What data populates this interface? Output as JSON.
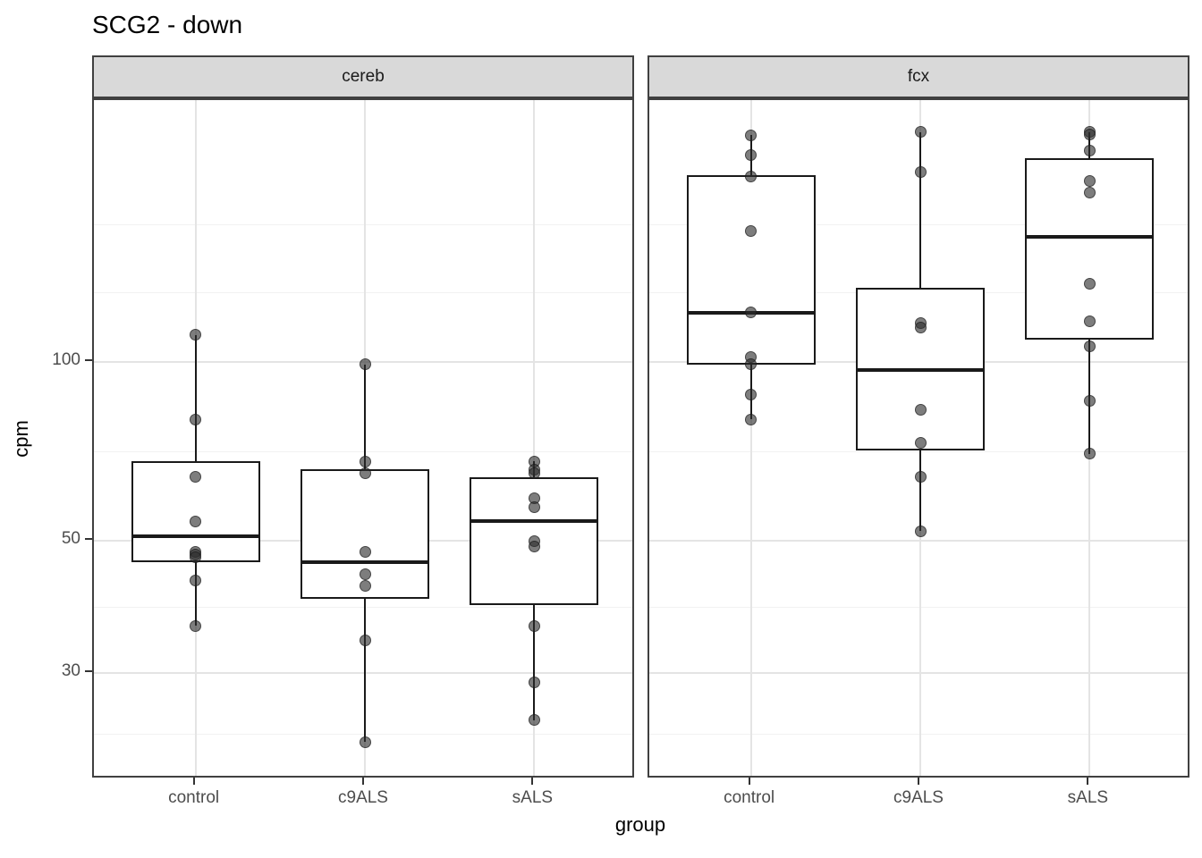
{
  "title": "SCG2 - down",
  "axes": {
    "x_title": "group",
    "y_title": "cpm",
    "y_tick_labels": [
      "100",
      "50",
      "30"
    ],
    "x_tick_labels": [
      "control",
      "c9ALS",
      "sALS"
    ]
  },
  "facet_labels": [
    "cereb",
    "fcx"
  ],
  "chart_data": {
    "type": "boxplot",
    "subtype": "faceted boxplot with overlaid points, log10 y scale",
    "title": "SCG2 - down",
    "xlabel": "group",
    "ylabel": "cpm",
    "y_scale": "log10",
    "ylim": [
      19.9,
      275
    ],
    "y_major_ticks": [
      100,
      50,
      30
    ],
    "y_minor_gridlines": [
      170,
      130.4,
      70.7,
      38.7,
      23.7
    ],
    "categories": [
      "control",
      "c9ALS",
      "sALS"
    ],
    "grid": "on",
    "legend": "none",
    "facets": [
      {
        "label": "cereb",
        "groups": [
          {
            "category": "control",
            "box": {
              "q1": 46,
              "median": 51,
              "q3": 68,
              "whisker_low": 36,
              "whisker_high": 111
            },
            "points": [
              111,
              80,
              64,
              54,
              48,
              47.5,
              47,
              43,
              36
            ]
          },
          {
            "category": "c9ALS",
            "box": {
              "q1": 40,
              "median": 46,
              "q3": 66,
              "whisker_low": 23,
              "whisker_high": 99
            },
            "points": [
              99,
              68,
              65,
              48,
              44,
              42,
              34,
              23
            ]
          },
          {
            "category": "sALS",
            "box": {
              "q1": 39,
              "median": 54,
              "q3": 64,
              "whisker_low": 25,
              "whisker_high": 68
            },
            "points": [
              68,
              66,
              65,
              59,
              57,
              50,
              49,
              36,
              29,
              25
            ]
          }
        ]
      },
      {
        "label": "fcx",
        "groups": [
          {
            "category": "control",
            "box": {
              "q1": 99,
              "median": 121,
              "q3": 206,
              "whisker_low": 80,
              "whisker_high": 240
            },
            "points": [
              240,
              222,
              205,
              166,
              121,
              102,
              99,
              88,
              80
            ]
          },
          {
            "category": "c9ALS",
            "box": {
              "q1": 71,
              "median": 97,
              "q3": 133,
              "whisker_low": 52,
              "whisker_high": 243
            },
            "points": [
              243,
              208,
              116,
              114,
              83,
              73,
              64,
              52
            ]
          },
          {
            "category": "sALS",
            "box": {
              "q1": 109,
              "median": 162,
              "q3": 220,
              "whisker_low": 70,
              "whisker_high": 243
            },
            "points": [
              243,
              241,
              226,
              201,
              192,
              135,
              117,
              106,
              86,
              70
            ]
          }
        ]
      }
    ],
    "colors": {
      "strip_fill": "#d9d9d9",
      "panel_border": "#404040",
      "grid_major": "#e4e4e4",
      "grid_minor": "#f1f1f1",
      "box_stroke": "#1a1a1a",
      "point_fill": "rgba(45,45,45,0.62)",
      "axis_text": "#4d4d4d",
      "title_text": "#000000"
    }
  }
}
